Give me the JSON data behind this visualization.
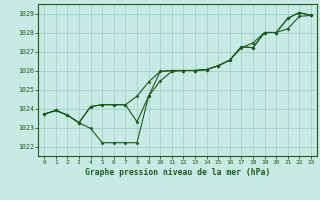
{
  "background_color": "#c8eae5",
  "grid_color": "#a8d4ce",
  "line_color": "#1a5c1a",
  "marker_color": "#1a5c1a",
  "title": "Graphe pression niveau de la mer (hPa)",
  "ylim": [
    1021.5,
    1029.5
  ],
  "xlim": [
    -0.5,
    23.5
  ],
  "yticks": [
    1022,
    1023,
    1024,
    1025,
    1026,
    1027,
    1028,
    1029
  ],
  "xticks": [
    0,
    1,
    2,
    3,
    4,
    5,
    6,
    7,
    8,
    9,
    10,
    11,
    12,
    13,
    14,
    15,
    16,
    17,
    18,
    19,
    20,
    21,
    22,
    23
  ],
  "series": [
    [
      1023.7,
      1023.9,
      1023.65,
      1023.25,
      1022.95,
      1022.2,
      1022.2,
      1022.2,
      1022.2,
      1024.65,
      1025.95,
      1026.0,
      1026.0,
      1026.0,
      1026.05,
      1026.25,
      1026.55,
      1027.2,
      1027.45,
      1028.0,
      1028.0,
      1028.75,
      1029.05,
      1028.9
    ],
    [
      1023.7,
      1023.9,
      1023.65,
      1023.25,
      1024.1,
      1024.2,
      1024.2,
      1024.2,
      1024.65,
      1025.4,
      1025.95,
      1026.0,
      1026.0,
      1026.0,
      1026.05,
      1026.25,
      1026.55,
      1027.25,
      1027.2,
      1028.0,
      1028.0,
      1028.2,
      1028.85,
      1028.9
    ],
    [
      1023.7,
      1023.9,
      1023.65,
      1023.25,
      1024.1,
      1024.2,
      1024.2,
      1024.2,
      1023.3,
      1024.65,
      1025.45,
      1025.95,
      1026.0,
      1026.0,
      1026.05,
      1026.25,
      1026.55,
      1027.25,
      1027.2,
      1028.0,
      1028.0,
      1028.75,
      1029.05,
      1028.9
    ]
  ]
}
